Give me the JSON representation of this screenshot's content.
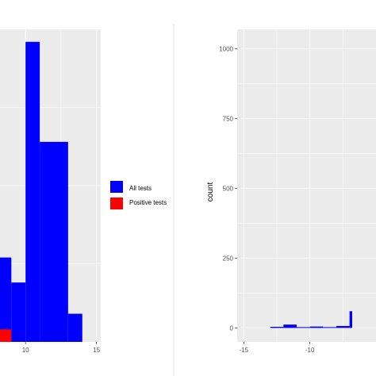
{
  "colors": {
    "panel_bg": "#ebebeb",
    "grid": "#ffffff",
    "all_tests": "#0000ff",
    "positive_tests": "#ff0000",
    "divider": "#dddddd"
  },
  "chart_data": [
    {
      "type": "bar",
      "panel": "left",
      "xlabel": "",
      "ylabel": "",
      "x_ticks": [
        10,
        15
      ],
      "xlim": [
        8.2,
        15.3
      ],
      "ylim": [
        0,
        1
      ],
      "grid": true,
      "series": [
        {
          "name": "All tests",
          "color": "#0000ff",
          "bins": [
            {
              "x0": 8.0,
              "x1": 9.0,
              "value": 0.27
            },
            {
              "x0": 9.0,
              "x1": 10.0,
              "value": 0.19
            },
            {
              "x0": 10.0,
              "x1": 11.0,
              "value": 0.96
            },
            {
              "x0": 11.0,
              "x1": 13.0,
              "value": 0.64
            },
            {
              "x0": 13.0,
              "x1": 14.0,
              "value": 0.09
            }
          ]
        },
        {
          "name": "Positive tests",
          "color": "#ff0000",
          "bins": [
            {
              "x0": 8.0,
              "x1": 9.0,
              "value": 0.04
            }
          ]
        }
      ]
    },
    {
      "type": "bar",
      "panel": "right",
      "xlabel": "",
      "ylabel": "count",
      "x_ticks": [
        -15,
        -10
      ],
      "y_ticks": [
        0,
        250,
        500,
        750,
        1000
      ],
      "xlim": [
        -15.5,
        -5
      ],
      "ylim": [
        -50,
        1070
      ],
      "grid": true,
      "series": [
        {
          "name": "All tests",
          "color": "#0000ff",
          "bins": [
            {
              "x0": -13.0,
              "x1": -12.0,
              "value": 4
            },
            {
              "x0": -12.0,
              "x1": -11.0,
              "value": 12
            },
            {
              "x0": -11.0,
              "x1": -10.0,
              "value": 3
            },
            {
              "x0": -10.0,
              "x1": -9.0,
              "value": 5
            },
            {
              "x0": -9.0,
              "x1": -8.0,
              "value": 3
            },
            {
              "x0": -8.0,
              "x1": -7.0,
              "value": 7
            },
            {
              "x0": -7.0,
              "x1": -6.8,
              "value": 60
            }
          ]
        }
      ]
    }
  ],
  "legend": {
    "items": [
      {
        "label": "All tests",
        "color": "#0000ff"
      },
      {
        "label": "Positive tests",
        "color": "#ff0000"
      }
    ]
  }
}
